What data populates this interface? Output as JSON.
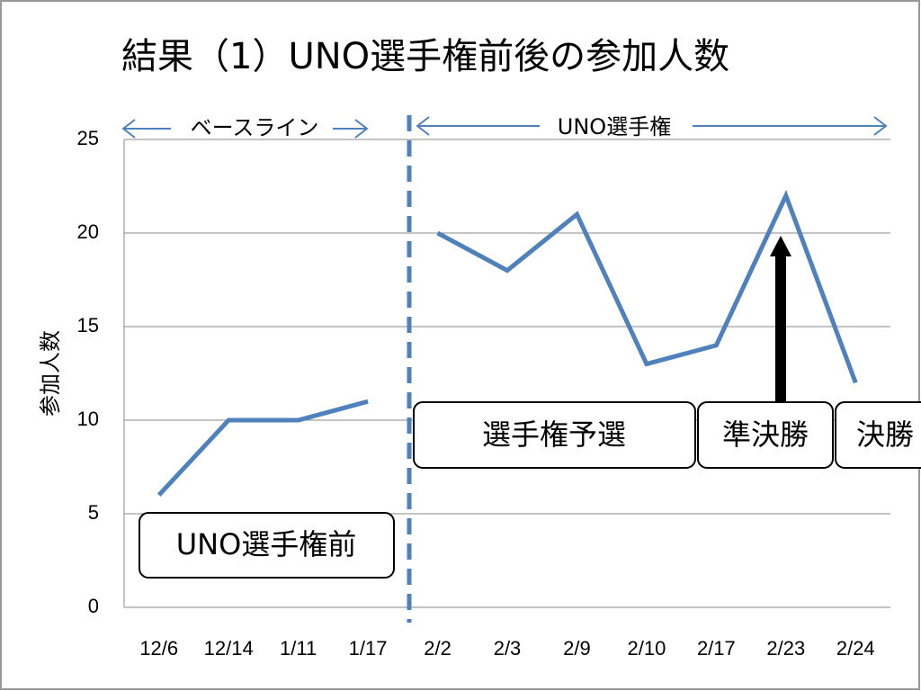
{
  "chart_data": {
    "type": "line",
    "title": "結果（1）UNO選手権前後の参加人数",
    "y_label": "参加人数",
    "categories": [
      "12/6",
      "12/14",
      "1/11",
      "1/17",
      "2/2",
      "2/3",
      "2/9",
      "2/10",
      "2/17",
      "2/23",
      "2/24"
    ],
    "series": [
      {
        "color": "#4f81bd",
        "values": [
          6,
          10,
          10,
          11,
          null,
          null,
          null,
          null,
          null,
          null,
          null
        ]
      },
      {
        "color": "#4f81bd",
        "values": [
          null,
          null,
          null,
          null,
          20,
          18,
          21,
          13,
          14,
          22,
          12
        ]
      }
    ],
    "ylim": [
      0,
      25
    ],
    "yticks": [
      0,
      5,
      10,
      15,
      20,
      25
    ],
    "grid": true,
    "annotations": [
      "ベースライン",
      "UNO選手権",
      "UNO選手権前",
      "選手権予選",
      "準決勝",
      "決勝"
    ]
  }
}
